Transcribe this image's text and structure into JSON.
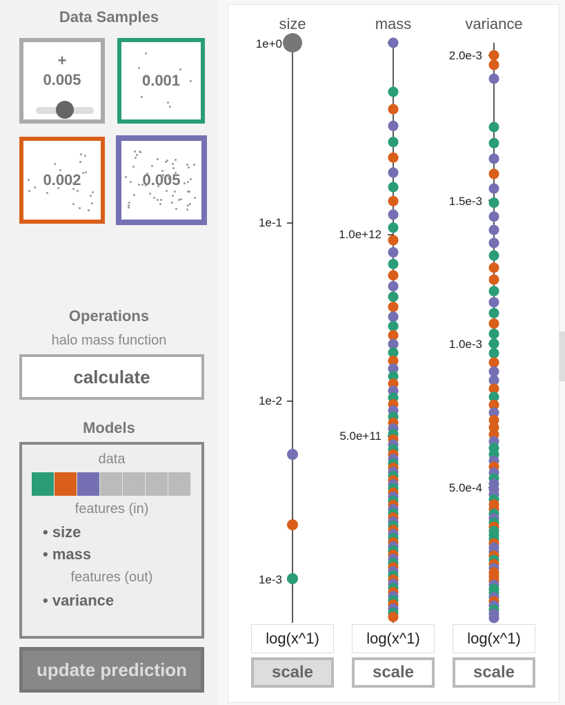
{
  "left": {
    "data_samples_title": "Data Samples",
    "samples": [
      {
        "label": "0.005",
        "plus": "+",
        "border": "#aaaaaa",
        "slider_value": 0.005
      },
      {
        "label": "0.001",
        "border": "#2a9d78"
      },
      {
        "label": "0.002",
        "border": "#d95f1a"
      },
      {
        "label": "0.005",
        "border": "#7570b3"
      }
    ],
    "operations_title": "Operations",
    "operation_name": "halo mass function",
    "calculate_label": "calculate",
    "models_title": "Models",
    "models": {
      "data_label": "data",
      "swatches": [
        "#2a9d78",
        "#d95f1a",
        "#7570b3",
        "#bbbbbb",
        "#bbbbbb",
        "#bbbbbb",
        "#bbbbbb"
      ],
      "features_in_label": "features (in)",
      "features_in": [
        "size",
        "mass"
      ],
      "features_out_label": "features (out)",
      "features_out": [
        "variance"
      ]
    },
    "update_label": "update prediction"
  },
  "axes": [
    {
      "title": "size",
      "ticks": [
        "1e+0",
        "1e-1",
        "1e-2",
        "1e-3"
      ],
      "scale_input": "log(x^1)",
      "scale_label": "scale"
    },
    {
      "title": "mass",
      "ticks": [
        "1.0e+12",
        "5.0e+11"
      ],
      "scale_input": "log(x^1)",
      "scale_label": "scale"
    },
    {
      "title": "variance",
      "ticks": [
        "2.0e-3",
        "1.5e-3",
        "1.0e-3",
        "5.0e-4"
      ],
      "scale_input": "log(x^1)",
      "scale_label": "scale"
    }
  ],
  "colors": {
    "green": "#2a9d78",
    "orange": "#d95f1a",
    "purple": "#7570b3",
    "grey": "#777777"
  }
}
